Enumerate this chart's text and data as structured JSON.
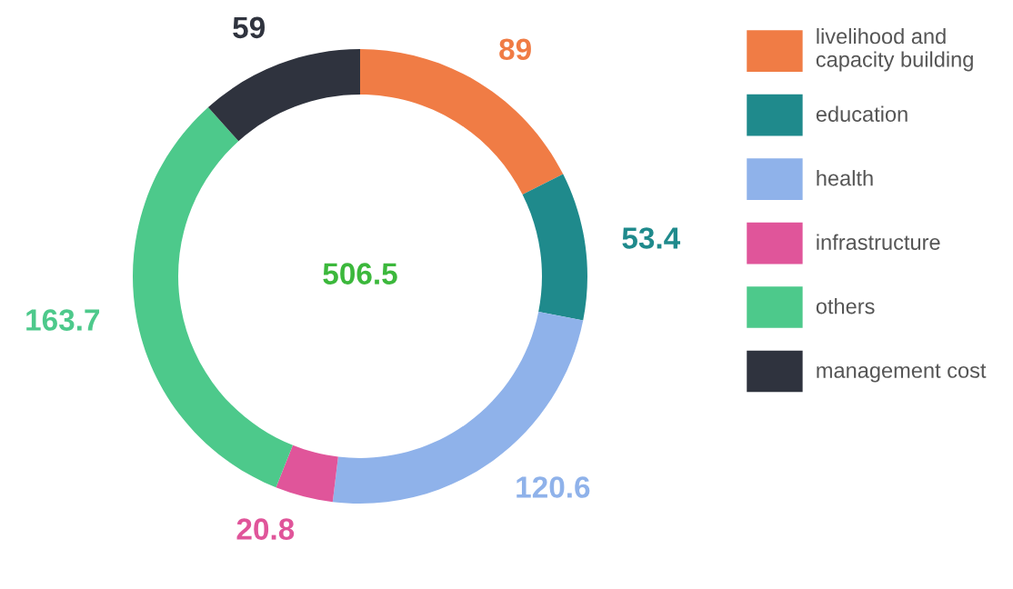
{
  "chart_data": {
    "type": "donut",
    "categories": [
      "livelihood and\ncapacity building",
      "education",
      "health",
      "infrastructure",
      "others",
      "management cost"
    ],
    "values": [
      89,
      53.4,
      120.6,
      20.8,
      163.7,
      59
    ],
    "colors": [
      "#f07c45",
      "#1f8a8c",
      "#8fb2ea",
      "#e0559a",
      "#4dc98b",
      "#2f333e"
    ],
    "data_labels": true,
    "legend": "right",
    "annotations": [
      "506.5"
    ]
  }
}
